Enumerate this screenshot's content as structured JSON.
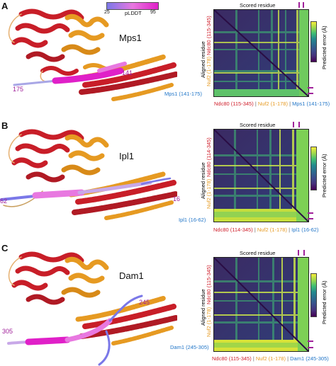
{
  "colors": {
    "ndc80": "#d0202c",
    "nuf2": "#e69a22",
    "peptide": "#2276c8",
    "marker": "#a0209a"
  },
  "plddt": {
    "title": "pLDDT",
    "min": "25",
    "max": "95"
  },
  "panels": [
    {
      "letter": "A",
      "protein": "Mps1",
      "res_start": "175",
      "res_end": "141",
      "heatmap": {
        "scored_label": "Scored residue",
        "aligned_label": "Aligned residue",
        "cbar_label": "Predicted error (Å)",
        "x_labels": [
          "Ndc80 (115-345)",
          "Nuf2 (1-178)",
          "Mps1 (141-175)"
        ],
        "y_labels": [
          "Ndc80 (115-345)",
          "Nuf2 (1-178)",
          "Mps1 (141-175)"
        ],
        "cbar_ticks": [
          "30",
          "25",
          "20",
          "15",
          "10",
          "5"
        ]
      }
    },
    {
      "letter": "B",
      "protein": "Ipl1",
      "res_start": "62",
      "res_end": "16",
      "heatmap": {
        "scored_label": "Scored residue",
        "aligned_label": "Aligned residue",
        "cbar_label": "Predicted error (Å)",
        "x_labels": [
          "Ndc80 (114-345)",
          "Nuf2 (1-178)",
          "Ipl1 (16-62)"
        ],
        "y_labels": [
          "Ndc80 (114-345)",
          "Nuf2 (1-178)",
          "Ipl1 (16-62)"
        ],
        "cbar_ticks": [
          "30",
          "25",
          "20",
          "15",
          "10",
          "5"
        ]
      }
    },
    {
      "letter": "C",
      "protein": "Dam1",
      "res_start": "305",
      "res_end": "245",
      "heatmap": {
        "scored_label": "Scored residue",
        "aligned_label": "Aligned residue",
        "cbar_label": "Predicted error (Å)",
        "x_labels": [
          "Ndc80 (115-345)",
          "Nuf2 (1-178)",
          "Dam1 (245-305)"
        ],
        "y_labels": [
          "Ndc80 (115-345)",
          "Nuf2 (1-178)",
          "Dam1 (245-305)"
        ],
        "cbar_ticks": [
          "30",
          "25",
          "20",
          "15",
          "10",
          "5"
        ]
      }
    }
  ]
}
